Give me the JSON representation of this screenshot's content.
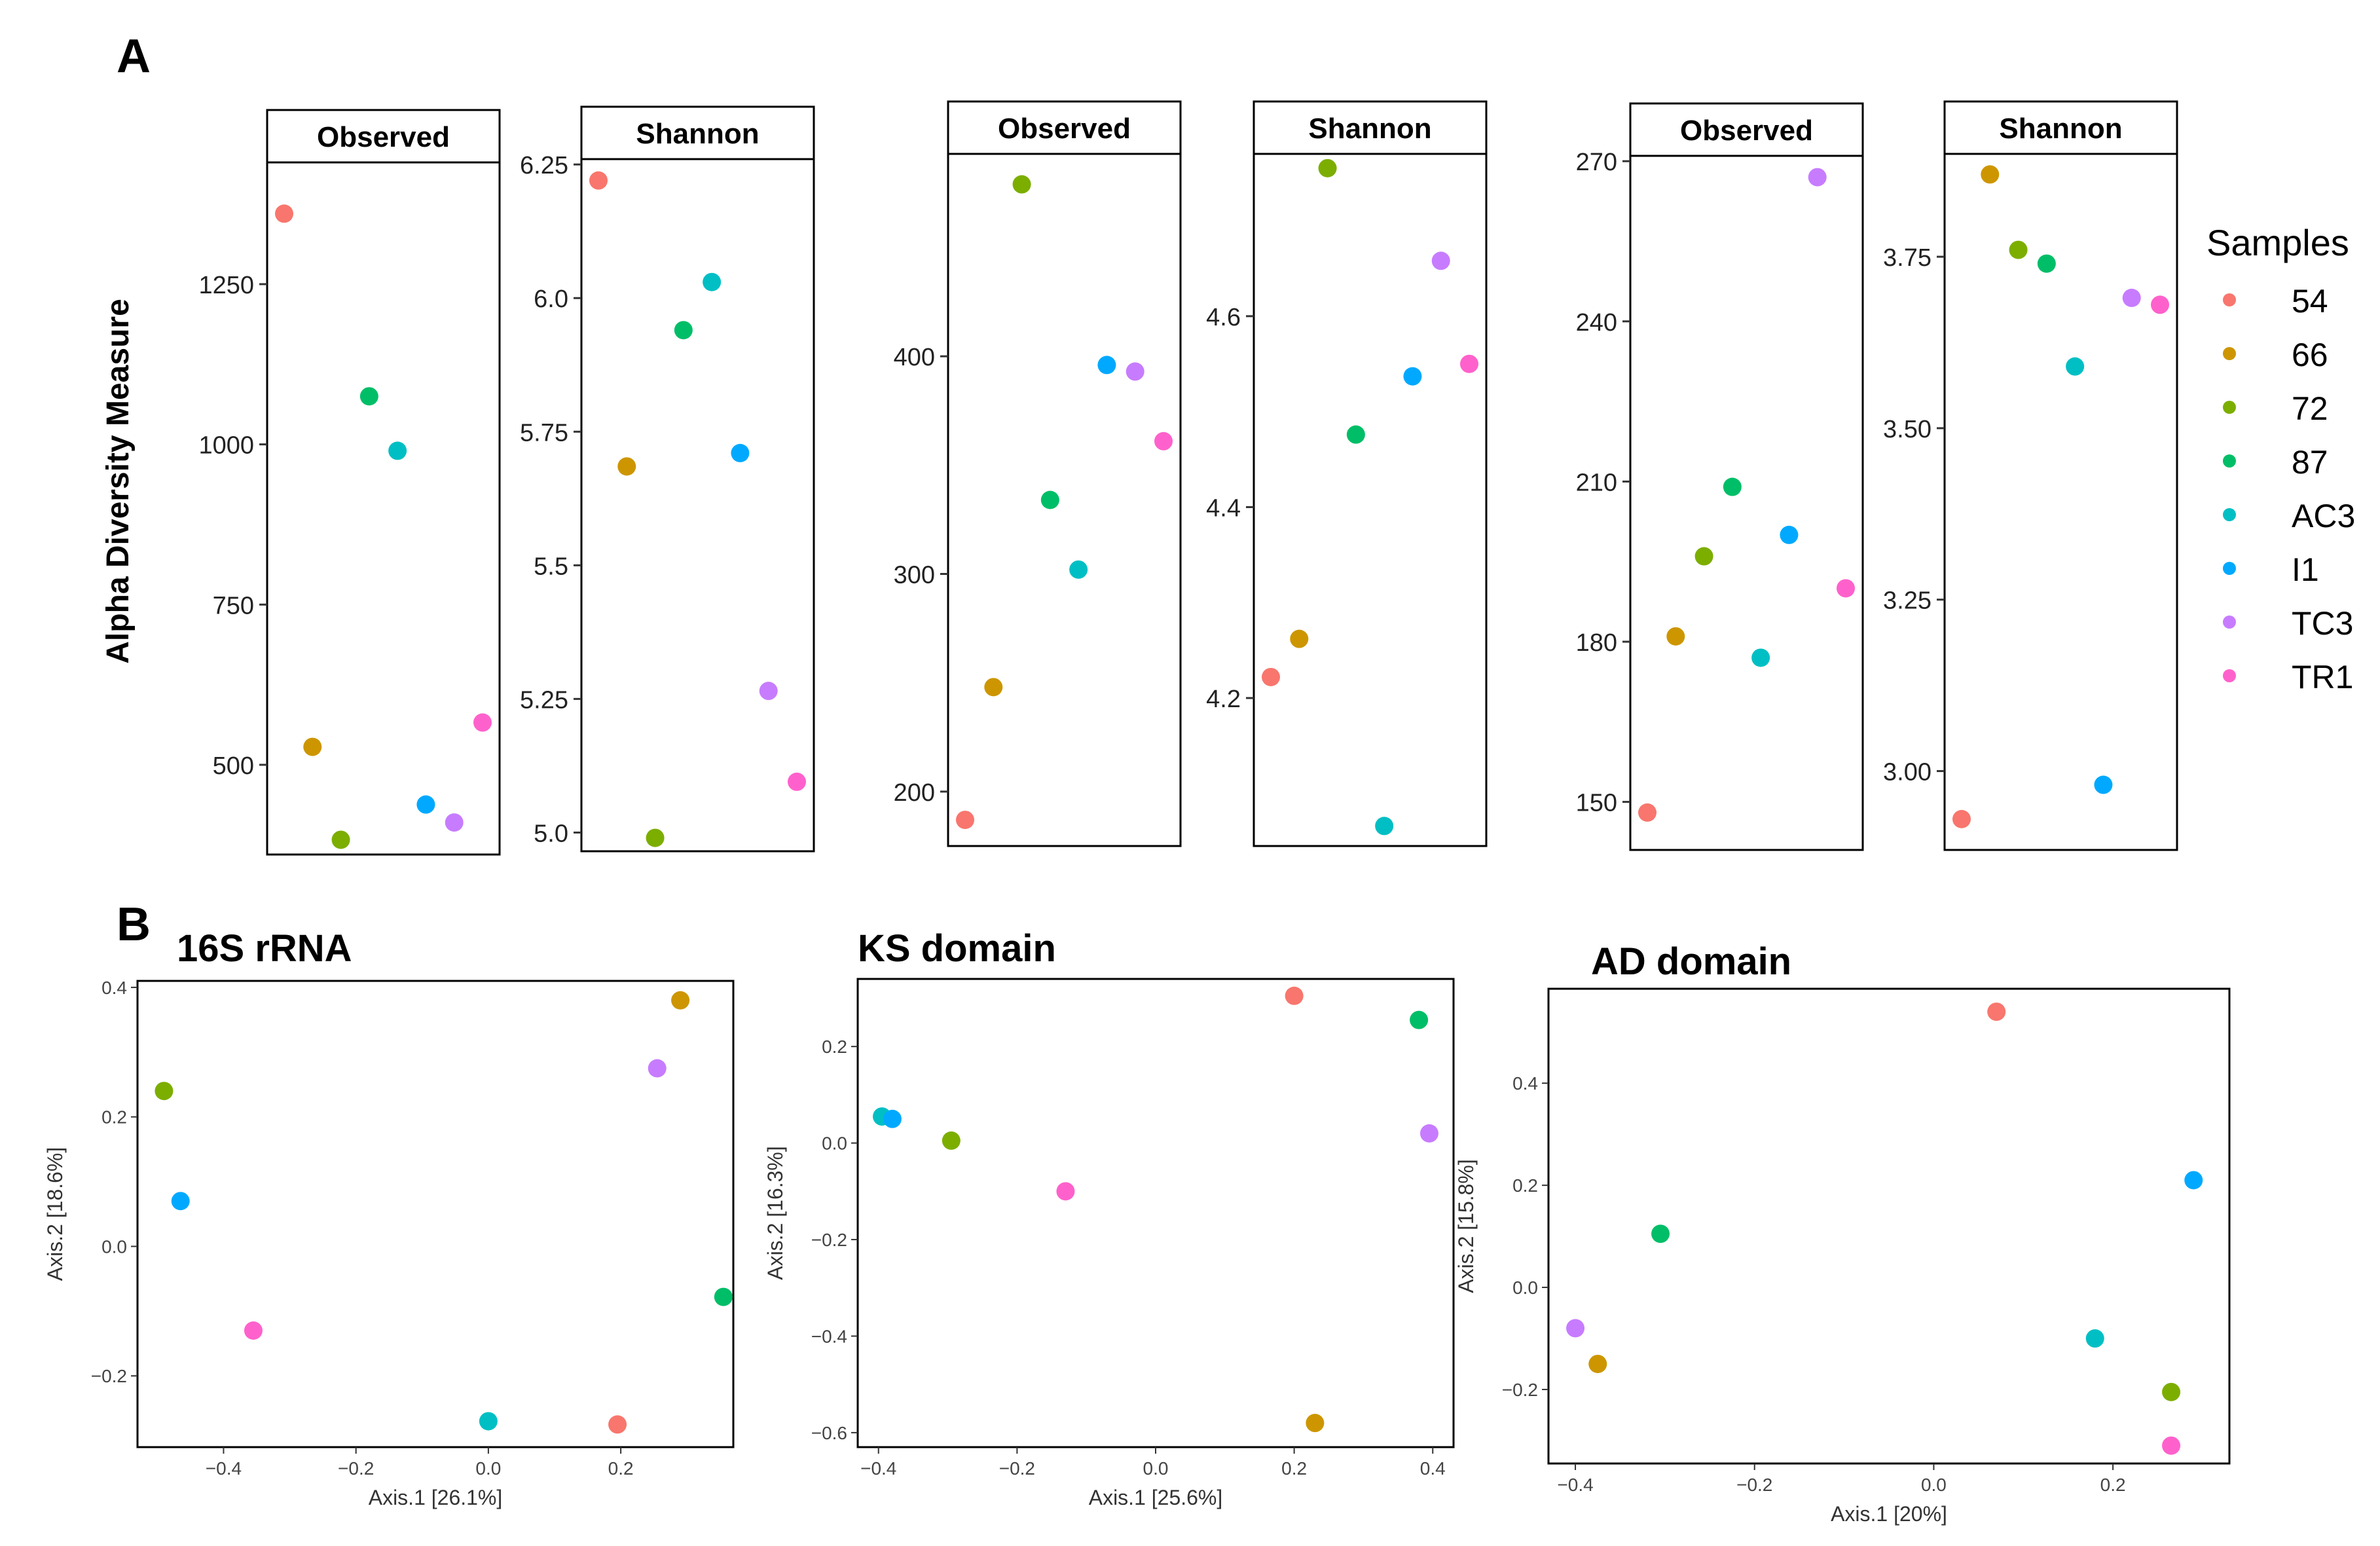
{
  "panel_labels": {
    "a": "A",
    "b": "B"
  },
  "legend": {
    "title": "Samples",
    "items": [
      {
        "label": "54",
        "color": "#F8766D"
      },
      {
        "label": "66",
        "color": "#CD9600"
      },
      {
        "label": "72",
        "color": "#7CAE00"
      },
      {
        "label": "87",
        "color": "#00BE67"
      },
      {
        "label": "AC3",
        "color": "#00BFC4"
      },
      {
        "label": "I1",
        "color": "#00A9FF"
      },
      {
        "label": "TC3",
        "color": "#C77CFF"
      },
      {
        "label": "TR1",
        "color": "#FF61CC"
      }
    ]
  },
  "y_shared_label": "Alpha Diversity Measure",
  "chart_data": [
    {
      "type": "scatter",
      "group": "16S rRNA",
      "title": "Observed",
      "ylim": [
        360,
        1440
      ],
      "ticks": [
        500,
        750,
        1000,
        1250
      ],
      "tick_labels": [
        "500",
        "750",
        "1000",
        "1250"
      ],
      "points": [
        {
          "sample": "54",
          "y": 1360
        },
        {
          "sample": "66",
          "y": 528
        },
        {
          "sample": "72",
          "y": 383
        },
        {
          "sample": "87",
          "y": 1075
        },
        {
          "sample": "AC3",
          "y": 990
        },
        {
          "sample": "I1",
          "y": 438
        },
        {
          "sample": "TC3",
          "y": 410
        },
        {
          "sample": "TR1",
          "y": 566
        }
      ]
    },
    {
      "type": "scatter",
      "group": "16S rRNA",
      "title": "Shannon",
      "ylim": [
        4.965,
        6.26
      ],
      "ticks": [
        5.0,
        5.25,
        5.5,
        5.75,
        6.0,
        6.25
      ],
      "tick_labels": [
        "5.0",
        "5.25",
        "5.5",
        "5.75",
        "6.0",
        "6.25"
      ],
      "points": [
        {
          "sample": "54",
          "y": 6.22
        },
        {
          "sample": "66",
          "y": 5.685
        },
        {
          "sample": "72",
          "y": 4.99
        },
        {
          "sample": "87",
          "y": 5.94
        },
        {
          "sample": "AC3",
          "y": 6.03
        },
        {
          "sample": "I1",
          "y": 5.71
        },
        {
          "sample": "TC3",
          "y": 5.265
        },
        {
          "sample": "TR1",
          "y": 5.095
        }
      ]
    },
    {
      "type": "scatter",
      "group": "KS domain",
      "title": "Observed",
      "ylim": [
        175,
        493
      ],
      "ticks": [
        200,
        300,
        400
      ],
      "tick_labels": [
        "200",
        "300",
        "400"
      ],
      "points": [
        {
          "sample": "54",
          "y": 187
        },
        {
          "sample": "66",
          "y": 248
        },
        {
          "sample": "72",
          "y": 479
        },
        {
          "sample": "87",
          "y": 334
        },
        {
          "sample": "AC3",
          "y": 302
        },
        {
          "sample": "I1",
          "y": 396
        },
        {
          "sample": "TC3",
          "y": 393
        },
        {
          "sample": "TR1",
          "y": 361
        }
      ]
    },
    {
      "type": "scatter",
      "group": "KS domain",
      "title": "Shannon",
      "ylim": [
        4.045,
        4.77
      ],
      "ticks": [
        4.2,
        4.4,
        4.6
      ],
      "tick_labels": [
        "4.2",
        "4.4",
        "4.6"
      ],
      "points": [
        {
          "sample": "54",
          "y": 4.222
        },
        {
          "sample": "66",
          "y": 4.262
        },
        {
          "sample": "72",
          "y": 4.755
        },
        {
          "sample": "87",
          "y": 4.476
        },
        {
          "sample": "AC3",
          "y": 4.066
        },
        {
          "sample": "I1",
          "y": 4.537
        },
        {
          "sample": "TC3",
          "y": 4.658
        },
        {
          "sample": "TR1",
          "y": 4.55
        }
      ]
    },
    {
      "type": "scatter",
      "group": "AD domain",
      "title": "Observed",
      "ylim": [
        141,
        271
      ],
      "ticks": [
        150,
        180,
        210,
        240,
        270
      ],
      "tick_labels": [
        "150",
        "180",
        "210",
        "240",
        "270"
      ],
      "points": [
        {
          "sample": "54",
          "y": 148
        },
        {
          "sample": "66",
          "y": 181
        },
        {
          "sample": "72",
          "y": 196
        },
        {
          "sample": "87",
          "y": 209
        },
        {
          "sample": "AC3",
          "y": 177
        },
        {
          "sample": "I1",
          "y": 200
        },
        {
          "sample": "TC3",
          "y": 267
        },
        {
          "sample": "TR1",
          "y": 190
        }
      ]
    },
    {
      "type": "scatter",
      "group": "AD domain",
      "title": "Shannon",
      "ylim": [
        2.885,
        3.9
      ],
      "ticks": [
        3.0,
        3.25,
        3.5,
        3.75
      ],
      "tick_labels": [
        "3.00",
        "3.25",
        "3.50",
        "3.75"
      ],
      "points": [
        {
          "sample": "54",
          "y": 2.93
        },
        {
          "sample": "66",
          "y": 3.87
        },
        {
          "sample": "72",
          "y": 3.76
        },
        {
          "sample": "87",
          "y": 3.74
        },
        {
          "sample": "AC3",
          "y": 3.59
        },
        {
          "sample": "I1",
          "y": 2.98
        },
        {
          "sample": "TC3",
          "y": 3.69
        },
        {
          "sample": "TR1",
          "y": 3.68
        }
      ]
    },
    {
      "type": "scatter",
      "title": "16S rRNA",
      "xlabel": "Axis.1   [26.1%]",
      "ylabel": "Axis.2   [18.6%]",
      "xlim": [
        -0.53,
        0.37
      ],
      "ylim": [
        -0.31,
        0.41
      ],
      "xticks": [
        -0.4,
        -0.2,
        0.0,
        0.2
      ],
      "xtick_labels": [
        "−0.4",
        "−0.2",
        "0.0",
        "0.2"
      ],
      "yticks": [
        -0.2,
        0.0,
        0.2,
        0.4
      ],
      "ytick_labels": [
        "−0.2",
        "0.0",
        "0.2",
        "0.4"
      ],
      "points": [
        {
          "sample": "54",
          "x": 0.195,
          "y": -0.275
        },
        {
          "sample": "66",
          "x": 0.29,
          "y": 0.38
        },
        {
          "sample": "72",
          "x": -0.49,
          "y": 0.24
        },
        {
          "sample": "87",
          "x": 0.355,
          "y": -0.078
        },
        {
          "sample": "AC3",
          "x": 0.0,
          "y": -0.27
        },
        {
          "sample": "I1",
          "x": -0.465,
          "y": 0.07
        },
        {
          "sample": "TC3",
          "x": 0.255,
          "y": 0.275
        },
        {
          "sample": "TR1",
          "x": -0.355,
          "y": -0.13
        }
      ]
    },
    {
      "type": "scatter",
      "title": "KS domain",
      "xlabel": "Axis.1   [25.6%]",
      "ylabel": "Axis.2   [16.3%]",
      "xlim": [
        -0.43,
        0.43
      ],
      "ylim": [
        -0.63,
        0.34
      ],
      "xticks": [
        -0.4,
        -0.2,
        0.0,
        0.2,
        0.4
      ],
      "xtick_labels": [
        "−0.4",
        "−0.2",
        "0.0",
        "0.2",
        "0.4"
      ],
      "yticks": [
        -0.6,
        -0.4,
        -0.2,
        0.0,
        0.2
      ],
      "ytick_labels": [
        "−0.6",
        "−0.4",
        "−0.2",
        "0.0",
        "0.2"
      ],
      "points": [
        {
          "sample": "54",
          "x": 0.2,
          "y": 0.305
        },
        {
          "sample": "66",
          "x": 0.23,
          "y": -0.58
        },
        {
          "sample": "72",
          "x": -0.295,
          "y": 0.005
        },
        {
          "sample": "87",
          "x": 0.38,
          "y": 0.255
        },
        {
          "sample": "AC3",
          "x": -0.395,
          "y": 0.055
        },
        {
          "sample": "I1",
          "x": -0.38,
          "y": 0.05
        },
        {
          "sample": "TC3",
          "x": 0.395,
          "y": 0.02
        },
        {
          "sample": "TR1",
          "x": -0.13,
          "y": -0.1
        }
      ]
    },
    {
      "type": "scatter",
      "title": "AD domain",
      "xlabel": "Axis.1   [20%]",
      "ylabel": "Axis.2   [15.8%]",
      "xlim": [
        -0.43,
        0.33
      ],
      "ylim": [
        -0.345,
        0.585
      ],
      "xticks": [
        -0.4,
        -0.2,
        0.0,
        0.2
      ],
      "xtick_labels": [
        "−0.4",
        "−0.2",
        "0.0",
        "0.2"
      ],
      "yticks": [
        -0.2,
        0.0,
        0.2,
        0.4
      ],
      "ytick_labels": [
        "−0.2",
        "0.0",
        "0.2",
        "0.4"
      ],
      "points": [
        {
          "sample": "54",
          "x": 0.07,
          "y": 0.54
        },
        {
          "sample": "66",
          "x": -0.375,
          "y": -0.15
        },
        {
          "sample": "72",
          "x": 0.265,
          "y": -0.205
        },
        {
          "sample": "87",
          "x": -0.305,
          "y": 0.105
        },
        {
          "sample": "AC3",
          "x": 0.18,
          "y": -0.1
        },
        {
          "sample": "I1",
          "x": 0.29,
          "y": 0.21
        },
        {
          "sample": "TC3",
          "x": -0.4,
          "y": -0.08
        },
        {
          "sample": "TR1",
          "x": 0.265,
          "y": -0.31
        }
      ]
    }
  ]
}
